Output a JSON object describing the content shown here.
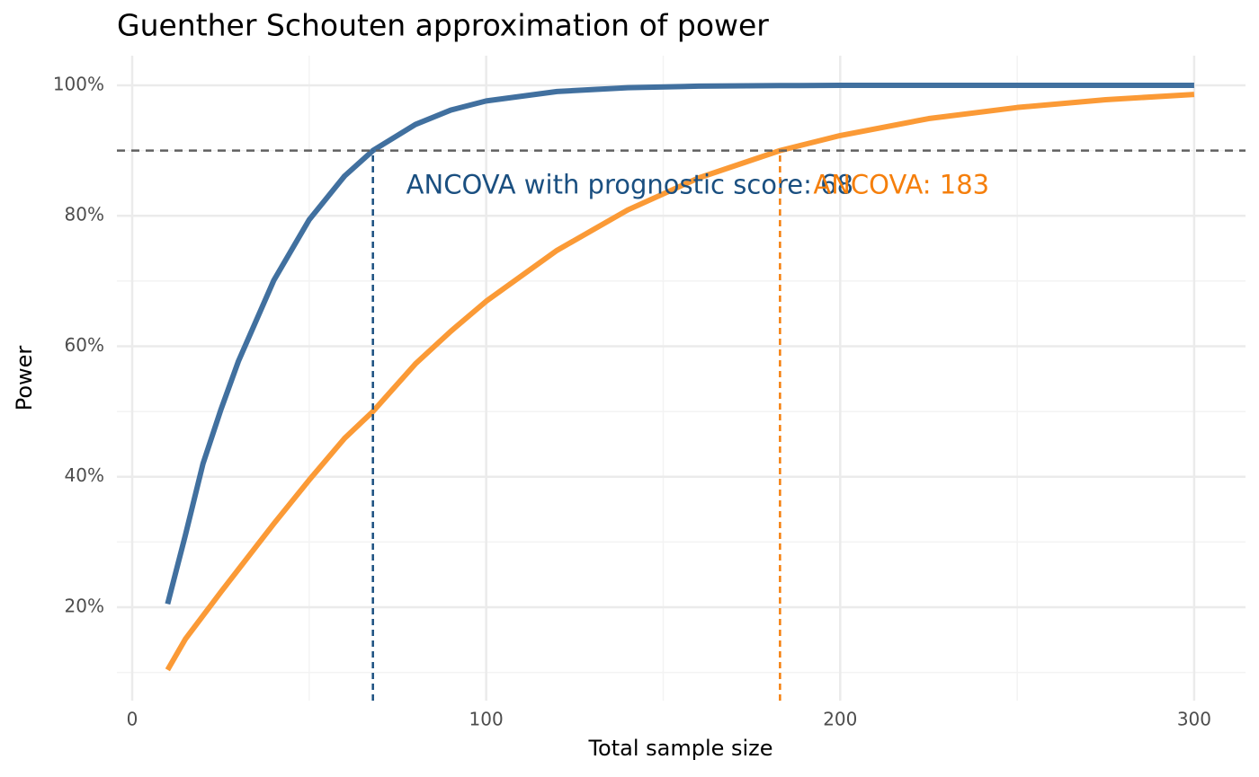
{
  "chart_data": {
    "type": "line",
    "title": "Guenther Schouten approximation of power",
    "xlabel": "Total sample size",
    "ylabel": "Power",
    "x": [
      10,
      15,
      20,
      25,
      30,
      40,
      50,
      60,
      68,
      80,
      90,
      100,
      120,
      140,
      160,
      183,
      200,
      225,
      250,
      275,
      300
    ],
    "series": [
      {
        "color": "#41709f",
        "values": [
          20.5,
          31,
          42,
          50.2,
          57.7,
          70.1,
          79.4,
          86.1,
          90,
          94,
          96.2,
          97.6,
          99.05,
          99.64,
          99.87,
          99.96,
          99.99,
          100,
          100,
          100,
          100
        ]
      },
      {
        "color": "#fb9a36",
        "values": [
          10.4,
          15.1,
          18.7,
          22.3,
          25.8,
          32.8,
          39.5,
          45.9,
          50,
          57.3,
          62.3,
          66.9,
          74.7,
          80.9,
          85.8,
          90,
          92.3,
          94.9,
          96.6,
          97.8,
          98.6
        ]
      }
    ],
    "xlim": [
      -4.32,
      314.5
    ],
    "ylim": [
      5.68,
      104.54
    ],
    "xticks": [
      0,
      100,
      200,
      300
    ],
    "yticks": [
      {
        "value": 20,
        "label": "20%"
      },
      {
        "value": 40,
        "label": "40%"
      },
      {
        "value": 60,
        "label": "60%"
      },
      {
        "value": 80,
        "label": "80%"
      },
      {
        "value": 100,
        "label": "100%"
      }
    ],
    "xminor": [
      50,
      150,
      250
    ],
    "yminor": [
      10,
      30,
      50,
      70,
      90
    ],
    "grid": true,
    "hline": 90,
    "annotations": [
      {
        "text": "ANCOVA with prognostic score: 68",
        "x": 68,
        "color": "#1a4f80"
      },
      {
        "text": "ANCOVA: 183",
        "x": 183,
        "color": "#f57f0c"
      }
    ]
  }
}
